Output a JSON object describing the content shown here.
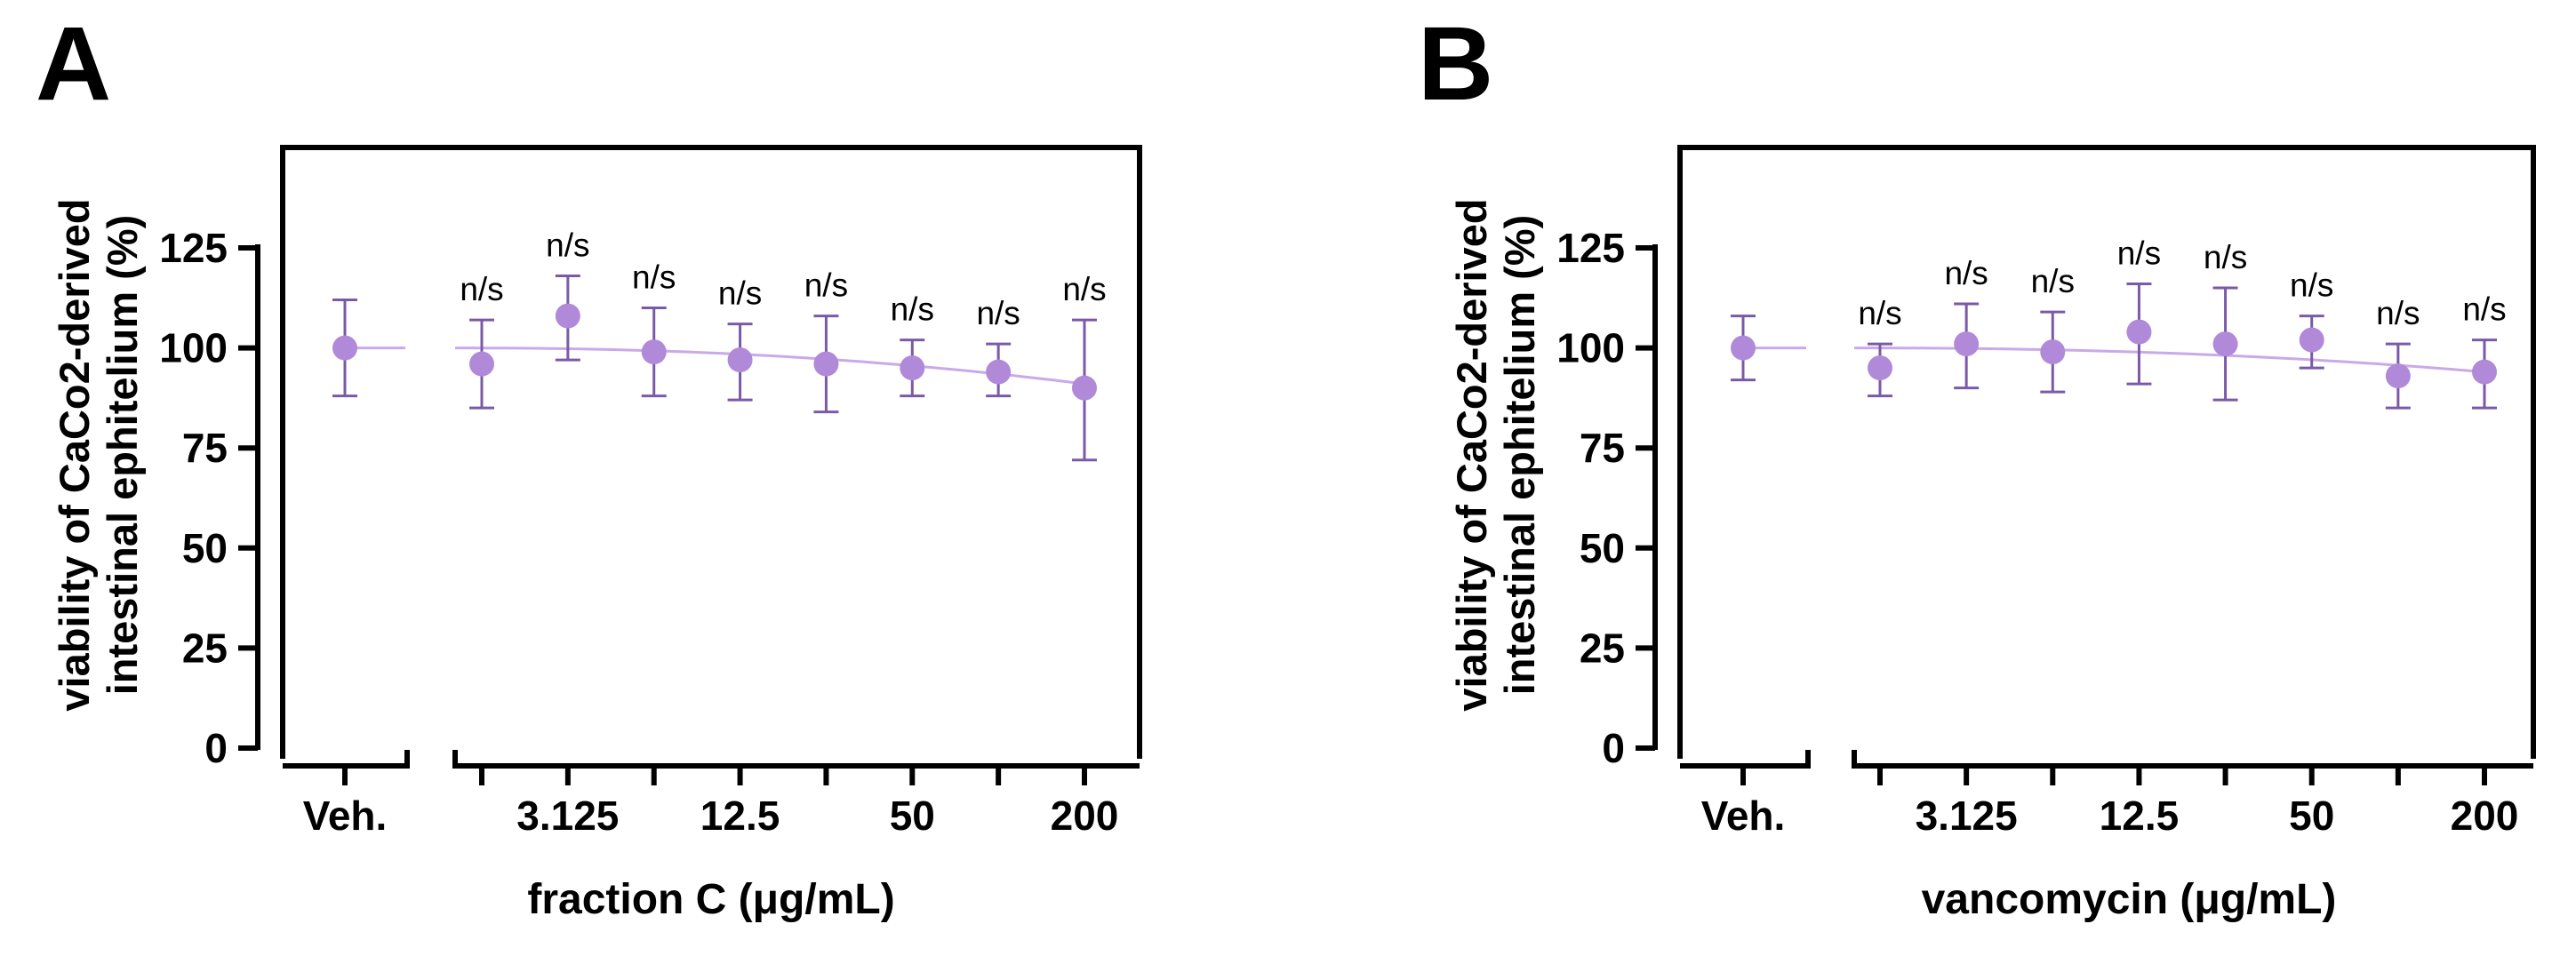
{
  "colors": {
    "data": "#b08ad8",
    "errorbar": "#7a5aa6",
    "fit": "#c9a9e9",
    "axis": "#000000"
  },
  "chart_data": [
    {
      "type": "scatter",
      "panel": "A",
      "xlabel": "fraction C (μg/mL)",
      "ylabel_line1": "viability of CaCo2-derived",
      "ylabel_line2": "intestinal ephitelium (%)",
      "ylim": [
        0,
        150
      ],
      "yticks": [
        "0",
        "25",
        "50",
        "75",
        "100",
        "125"
      ],
      "xticks_labeled": [
        "3.125",
        "12.5",
        "50",
        "200"
      ],
      "vehicle": {
        "label": "Veh.",
        "mean": 100,
        "err_low": 88,
        "err_high": 112
      },
      "points": [
        {
          "conc": 1.5625,
          "mean": 96,
          "err_low": 85,
          "err_high": 107,
          "sig": "n/s"
        },
        {
          "conc": 3.125,
          "mean": 108,
          "err_low": 97,
          "err_high": 118,
          "sig": "n/s"
        },
        {
          "conc": 6.25,
          "mean": 99,
          "err_low": 88,
          "err_high": 110,
          "sig": "n/s"
        },
        {
          "conc": 12.5,
          "mean": 97,
          "err_low": 87,
          "err_high": 106,
          "sig": "n/s"
        },
        {
          "conc": 25,
          "mean": 96,
          "err_low": 84,
          "err_high": 108,
          "sig": "n/s"
        },
        {
          "conc": 50,
          "mean": 95,
          "err_low": 88,
          "err_high": 102,
          "sig": "n/s"
        },
        {
          "conc": 100,
          "mean": 94,
          "err_low": 88,
          "err_high": 101,
          "sig": "n/s"
        },
        {
          "conc": 200,
          "mean": 90,
          "err_low": 72,
          "err_high": 107,
          "sig": "n/s"
        }
      ],
      "fit": {
        "y_start": 100,
        "y_end": 91
      }
    },
    {
      "type": "scatter",
      "panel": "B",
      "xlabel": "vancomycin (μg/mL)",
      "ylabel_line1": "viability of CaCo2-derived",
      "ylabel_line2": "intestinal ephitelium (%)",
      "ylim": [
        0,
        150
      ],
      "yticks": [
        "0",
        "25",
        "50",
        "75",
        "100",
        "125"
      ],
      "xticks_labeled": [
        "3.125",
        "12.5",
        "50",
        "200"
      ],
      "vehicle": {
        "label": "Veh.",
        "mean": 100,
        "err_low": 92,
        "err_high": 108
      },
      "points": [
        {
          "conc": 1.5625,
          "mean": 95,
          "err_low": 88,
          "err_high": 101,
          "sig": "n/s"
        },
        {
          "conc": 3.125,
          "mean": 101,
          "err_low": 90,
          "err_high": 111,
          "sig": "n/s"
        },
        {
          "conc": 6.25,
          "mean": 99,
          "err_low": 89,
          "err_high": 109,
          "sig": "n/s"
        },
        {
          "conc": 12.5,
          "mean": 104,
          "err_low": 91,
          "err_high": 116,
          "sig": "n/s"
        },
        {
          "conc": 25,
          "mean": 101,
          "err_low": 87,
          "err_high": 115,
          "sig": "n/s"
        },
        {
          "conc": 50,
          "mean": 102,
          "err_low": 95,
          "err_high": 108,
          "sig": "n/s"
        },
        {
          "conc": 100,
          "mean": 93,
          "err_low": 85,
          "err_high": 101,
          "sig": "n/s"
        },
        {
          "conc": 200,
          "mean": 94,
          "err_low": 85,
          "err_high": 102,
          "sig": "n/s"
        }
      ],
      "fit": {
        "y_start": 100,
        "y_end": 94
      }
    }
  ]
}
